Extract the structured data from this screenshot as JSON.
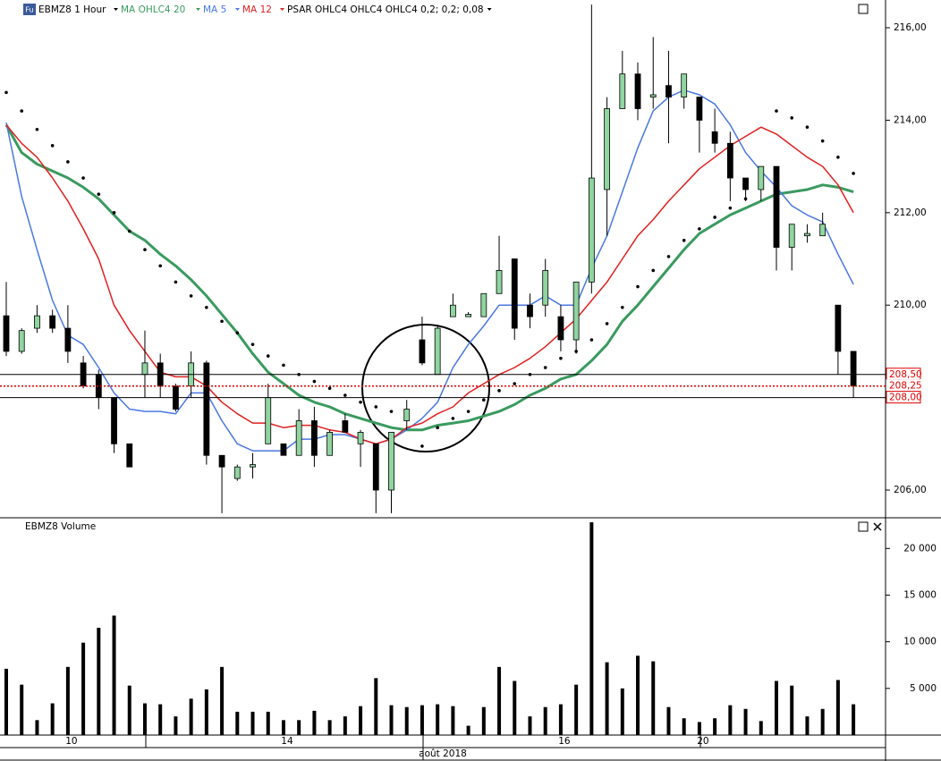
{
  "chart_data": [
    {
      "type": "candlestick",
      "title": "EBMZ8 1 Hour",
      "open": [
        209.77,
        209.0,
        209.5,
        209.77,
        209.5,
        208.75,
        208.5,
        208.0,
        207.0,
        208.5,
        208.75,
        208.25,
        208.25,
        208.75,
        206.75,
        206.25,
        206.5,
        207.0,
        207.0,
        206.75,
        207.5,
        206.75,
        207.5,
        207.0,
        207.0,
        206.0,
        207.5,
        209.25,
        208.5,
        209.75,
        209.75,
        209.75,
        210.25,
        211.0,
        210.0,
        210.0,
        209.75,
        209.25,
        210.5,
        212.5,
        214.25,
        215.0,
        214.5,
        214.75,
        214.5,
        214.5,
        213.75,
        213.5,
        212.75,
        212.5,
        213.0,
        211.25,
        211.5,
        211.5,
        210.0,
        209.0
      ],
      "high": [
        210.5,
        209.5,
        210.0,
        209.9,
        210.0,
        208.9,
        208.6,
        208.0,
        207.0,
        209.45,
        208.95,
        208.3,
        209.0,
        208.8,
        206.75,
        206.55,
        206.8,
        208.3,
        207.0,
        207.75,
        207.8,
        207.3,
        207.65,
        207.3,
        207.0,
        207.25,
        207.95,
        209.75,
        209.55,
        210.25,
        209.85,
        210.25,
        211.5,
        211.0,
        210.25,
        211.0,
        210.0,
        210.5,
        216.5,
        214.5,
        215.5,
        215.25,
        215.8,
        215.5,
        215.0,
        214.5,
        214.25,
        213.75,
        212.75,
        213.0,
        213.0,
        211.75,
        211.75,
        212.0,
        210.0,
        209.0
      ],
      "low": [
        208.9,
        208.95,
        209.4,
        209.4,
        208.75,
        208.2,
        207.75,
        206.8,
        206.5,
        208.0,
        208.0,
        207.7,
        208.0,
        206.55,
        205.5,
        206.2,
        206.25,
        207.0,
        206.75,
        206.75,
        206.5,
        206.75,
        207.25,
        206.5,
        205.5,
        205.5,
        207.3,
        208.7,
        208.5,
        209.75,
        209.75,
        209.75,
        210.25,
        209.25,
        209.5,
        209.75,
        209.0,
        208.95,
        210.25,
        211.5,
        214.25,
        214.0,
        214.25,
        213.5,
        214.25,
        213.3,
        213.3,
        212.25,
        212.25,
        212.25,
        210.75,
        210.75,
        211.35,
        211.5,
        208.5,
        208.0
      ],
      "close": [
        209.0,
        209.45,
        209.77,
        209.5,
        209.0,
        208.25,
        208.0,
        207.0,
        206.5,
        208.75,
        208.25,
        207.75,
        208.75,
        206.75,
        206.5,
        206.5,
        206.55,
        208.0,
        206.75,
        207.5,
        206.75,
        207.25,
        207.25,
        207.25,
        206.0,
        207.25,
        207.75,
        208.75,
        209.5,
        210.0,
        209.8,
        210.25,
        210.75,
        209.5,
        209.75,
        210.75,
        209.25,
        210.5,
        212.75,
        214.25,
        215.0,
        214.25,
        214.55,
        214.5,
        215.0,
        214.0,
        213.5,
        212.75,
        212.5,
        213.0,
        211.25,
        211.75,
        211.55,
        211.75,
        209.0,
        208.25
      ],
      "up_color": "#90d4a0",
      "down_color": "#000000",
      "overlays": [
        {
          "name": "MA OHLC4 20",
          "color": "#3a9a5f",
          "width": 3,
          "values": [
            213.9,
            213.3,
            213.05,
            212.9,
            212.75,
            212.55,
            212.3,
            211.95,
            211.6,
            211.4,
            211.1,
            210.85,
            210.55,
            210.2,
            209.8,
            209.4,
            208.95,
            208.55,
            208.3,
            208.05,
            207.9,
            207.8,
            207.65,
            207.55,
            207.45,
            207.35,
            207.3,
            207.3,
            207.4,
            207.45,
            207.5,
            207.6,
            207.7,
            207.85,
            208.05,
            208.2,
            208.4,
            208.5,
            208.8,
            209.15,
            209.65,
            210.0,
            210.4,
            210.8,
            211.2,
            211.55,
            211.75,
            211.95,
            212.1,
            212.25,
            212.4,
            212.45,
            212.5,
            212.6,
            212.55,
            212.45
          ]
        },
        {
          "name": "MA 5",
          "color": "#4a78e0",
          "width": 1.5,
          "values": [
            213.95,
            212.35,
            211.2,
            210.1,
            209.35,
            209.15,
            208.65,
            208.1,
            207.75,
            207.7,
            207.7,
            207.65,
            208.1,
            208.1,
            207.5,
            207.0,
            206.85,
            206.85,
            206.85,
            207.1,
            207.1,
            207.2,
            207.2,
            207.1,
            207.0,
            207.1,
            207.3,
            207.55,
            207.9,
            208.65,
            209.15,
            209.55,
            210.0,
            210.0,
            210.0,
            210.2,
            210.0,
            210.0,
            210.8,
            211.5,
            212.45,
            213.4,
            214.2,
            214.5,
            214.65,
            214.55,
            214.35,
            213.9,
            213.3,
            212.9,
            212.55,
            212.15,
            211.95,
            211.8,
            211.1,
            210.45
          ]
        },
        {
          "name": "MA 12",
          "color": "#e02020",
          "width": 1.5,
          "values": [
            213.9,
            213.5,
            213.2,
            212.75,
            212.25,
            211.65,
            211.0,
            210.0,
            209.45,
            209.0,
            208.55,
            208.45,
            208.45,
            208.25,
            207.9,
            207.65,
            207.45,
            207.45,
            207.35,
            207.4,
            207.4,
            207.3,
            207.25,
            207.1,
            207.0,
            207.1,
            207.35,
            207.45,
            207.65,
            207.8,
            208.1,
            208.3,
            208.5,
            208.65,
            208.85,
            209.1,
            209.4,
            209.7,
            210.1,
            210.5,
            211.0,
            211.5,
            211.85,
            212.25,
            212.6,
            212.95,
            213.2,
            213.45,
            213.65,
            213.85,
            213.7,
            213.45,
            213.2,
            213.0,
            212.6,
            212.0
          ]
        },
        {
          "name": "PSAR OHLC4 OHLC4 OHLC4 0,2; 0,2; 0,08",
          "color": "#000000",
          "dots": true,
          "values": [
            214.6,
            214.2,
            213.8,
            213.45,
            213.1,
            212.75,
            212.4,
            212.0,
            211.6,
            211.2,
            210.85,
            210.5,
            210.2,
            209.95,
            209.65,
            209.4,
            209.15,
            208.9,
            208.7,
            208.5,
            208.35,
            208.2,
            208.05,
            207.9,
            207.8,
            207.7,
            207.6,
            206.95,
            207.35,
            207.55,
            207.7,
            207.95,
            208.15,
            208.3,
            208.5,
            208.65,
            208.85,
            209.0,
            209.25,
            209.6,
            209.95,
            210.4,
            210.75,
            211.05,
            211.4,
            211.65,
            211.9,
            212.1,
            212.3,
            null,
            214.2,
            214.05,
            213.85,
            213.55,
            213.2,
            212.85
          ]
        }
      ],
      "ylim": [
        205.42,
        216.6
      ],
      "yticks": [
        {
          "value": 206,
          "label": "206,00"
        },
        {
          "value": 210,
          "label": "210,00"
        },
        {
          "value": 212,
          "label": "212,00"
        },
        {
          "value": 214,
          "label": "214,00"
        },
        {
          "value": 216,
          "label": "216,00"
        }
      ],
      "price_lines": [
        {
          "value": 208.5,
          "label": "208,50",
          "style": "solid"
        },
        {
          "value": 208.25,
          "label": "208,25",
          "style": "dotted"
        },
        {
          "value": 208.0,
          "label": "208,00",
          "style": "solid"
        }
      ]
    },
    {
      "type": "bar",
      "title": "EBMZ8 Volume",
      "categories": [
        null,
        null,
        null,
        null,
        "10",
        null,
        null,
        null,
        null,
        null,
        null,
        null,
        null,
        null,
        null,
        null,
        null,
        null,
        "14",
        null,
        null,
        null,
        null,
        null,
        null,
        null,
        null,
        null,
        null,
        null,
        null,
        null,
        null,
        null,
        null,
        null,
        "16",
        null,
        null,
        null,
        null,
        null,
        null,
        null,
        null,
        "20",
        null,
        null,
        null,
        null,
        null,
        null,
        null,
        null,
        null,
        null
      ],
      "xlabel": "août 2018",
      "values": [
        7100,
        5400,
        1600,
        3400,
        7300,
        9900,
        11500,
        12800,
        5300,
        3400,
        3300,
        2000,
        3900,
        4900,
        7300,
        2500,
        2500,
        2500,
        1600,
        1600,
        2600,
        1600,
        2000,
        3100,
        6100,
        3200,
        3000,
        3200,
        3300,
        3100,
        1000,
        3000,
        7300,
        5800,
        2000,
        3000,
        3300,
        5400,
        22800,
        7800,
        5000,
        8500,
        7900,
        3000,
        1800,
        1400,
        1800,
        3200,
        2800,
        1500,
        5800,
        5300,
        2000,
        2800,
        5900,
        3300
      ],
      "color": "#000000",
      "ylim": [
        0,
        23000
      ],
      "yticks": [
        {
          "value": 5000,
          "label": "5 000"
        },
        {
          "value": 10000,
          "label": "10 000"
        },
        {
          "value": 15000,
          "label": "15 000"
        },
        {
          "value": 20000,
          "label": "20 000"
        }
      ]
    }
  ]
}
